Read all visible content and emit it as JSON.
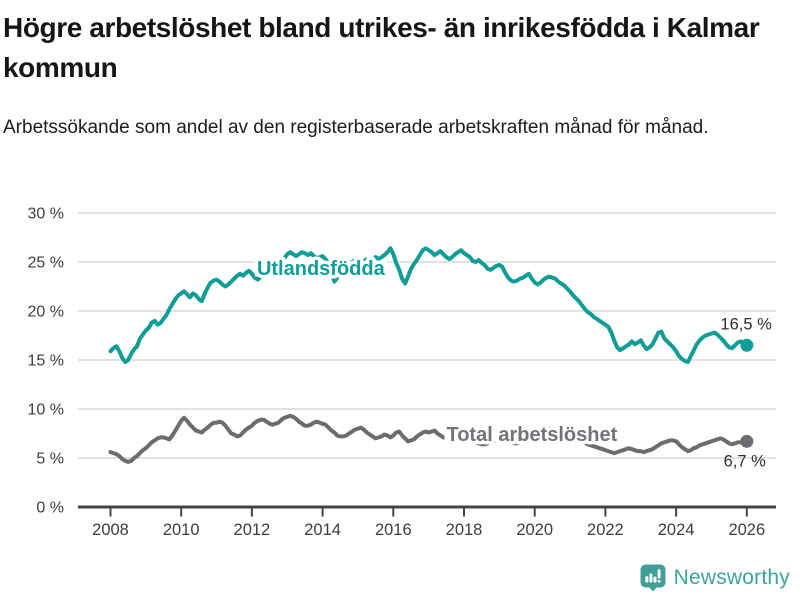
{
  "header": {
    "title": "Högre arbetslöshet bland utrikes- än inrikesfödda i Kalmar kommun",
    "subtitle": "Arbetssökande som andel av den registerbaserade arbetskraften månad för månad."
  },
  "footer": {
    "brand": "Newsworthy",
    "logo_icon": "bar-chart-speech-bubble-icon"
  },
  "colors": {
    "foreign_born_line": "#0f9e97",
    "total_line": "#6b6b70",
    "total_label": "#737379",
    "axis": "#444444",
    "grid": "#d9d9d9",
    "axis_text": "#3d3d3d",
    "annotation_text": "#2e2e2e",
    "brand_teal": "#3da49c"
  },
  "chart_data": {
    "type": "line",
    "title": "Högre arbetslöshet bland utrikes- än inrikesfödda i Kalmar kommun",
    "subtitle": "Arbetssökande som andel av den registerbaserade arbetskraften månad för månad.",
    "x_start": 2008.0,
    "points_per_year": 12,
    "xlim": [
      2007.1,
      2026.85
    ],
    "ylim": [
      0,
      30
    ],
    "grid": "horizontal",
    "legend": "inline-labels",
    "x_ticks": [
      2008,
      2010,
      2012,
      2014,
      2016,
      2018,
      2020,
      2022,
      2024,
      2026
    ],
    "y_ticks": [
      0,
      5,
      10,
      15,
      20,
      25,
      30
    ],
    "y_tick_labels": [
      "0 %",
      "5 %",
      "10 %",
      "15 %",
      "20 %",
      "25 %",
      "30 %"
    ],
    "series": [
      {
        "name": "Utlandsfödda",
        "color": "#0f9e97",
        "label_color": "#0f9e97",
        "label_x": 2013.95,
        "label_y": 24.4,
        "end_label": "16,5 %",
        "end_label_dx": 25,
        "end_label_dy": -16,
        "values": [
          15.9,
          16.2,
          16.4,
          15.9,
          15.2,
          14.8,
          15.0,
          15.6,
          16.1,
          16.4,
          17.2,
          17.6,
          18.0,
          18.3,
          18.8,
          19.0,
          18.6,
          18.8,
          19.2,
          19.6,
          20.2,
          20.7,
          21.2,
          21.6,
          21.8,
          22.0,
          21.7,
          21.4,
          21.8,
          21.6,
          21.2,
          21.0,
          21.8,
          22.4,
          22.9,
          23.1,
          23.2,
          23.0,
          22.7,
          22.5,
          22.7,
          23.0,
          23.3,
          23.6,
          23.8,
          23.6,
          23.9,
          24.1,
          23.8,
          23.4,
          23.2,
          23.5,
          23.9,
          24.2,
          24.0,
          24.3,
          24.5,
          24.8,
          25.1,
          25.4,
          25.8,
          26.0,
          25.8,
          25.6,
          25.8,
          26.0,
          25.9,
          25.7,
          25.9,
          25.6,
          25.4,
          25.5,
          25.6,
          25.3,
          24.8,
          23.9,
          23.0,
          23.4,
          24.2,
          24.7,
          25.0,
          24.8,
          25.0,
          25.2,
          25.0,
          24.8,
          25.1,
          25.3,
          25.1,
          25.3,
          25.5,
          25.3,
          25.5,
          25.7,
          26.0,
          26.4,
          25.8,
          24.9,
          24.2,
          23.3,
          22.8,
          23.5,
          24.3,
          24.8,
          25.2,
          25.7,
          26.2,
          26.4,
          26.2,
          26.0,
          25.7,
          25.9,
          26.1,
          25.8,
          25.5,
          25.3,
          25.5,
          25.8,
          26.0,
          26.2,
          25.9,
          25.7,
          25.5,
          25.1,
          25.0,
          25.2,
          24.9,
          24.7,
          24.3,
          24.2,
          24.4,
          24.6,
          24.7,
          24.5,
          23.9,
          23.4,
          23.1,
          23.0,
          23.1,
          23.3,
          23.4,
          23.6,
          23.8,
          23.3,
          22.9,
          22.7,
          22.9,
          23.2,
          23.4,
          23.5,
          23.4,
          23.3,
          23.0,
          22.8,
          22.6,
          22.3,
          22.0,
          21.6,
          21.3,
          21.0,
          20.6,
          20.2,
          19.9,
          19.7,
          19.4,
          19.2,
          19.0,
          18.8,
          18.6,
          18.4,
          17.8,
          17.0,
          16.3,
          16.0,
          16.2,
          16.4,
          16.6,
          16.9,
          16.6,
          16.8,
          17.0,
          16.5,
          16.1,
          16.3,
          16.6,
          17.2,
          17.8,
          17.9,
          17.2,
          16.9,
          16.6,
          16.3,
          15.9,
          15.4,
          15.1,
          14.9,
          14.8,
          15.4,
          16.0,
          16.6,
          17.0,
          17.3,
          17.5,
          17.6,
          17.7,
          17.8,
          17.6,
          17.3,
          17.0,
          16.6,
          16.3,
          16.2,
          16.5,
          16.8,
          16.9,
          16.7,
          16.5
        ]
      },
      {
        "name": "Total arbetslöshet",
        "color": "#6b6b70",
        "label_color": "#737379",
        "label_x": 2019.92,
        "label_y": 7.45,
        "end_label": "6,7 %",
        "end_label_dx": 19,
        "end_label_dy": 25,
        "values": [
          5.6,
          5.5,
          5.4,
          5.2,
          4.9,
          4.7,
          4.6,
          4.7,
          5.0,
          5.2,
          5.5,
          5.8,
          6.0,
          6.3,
          6.6,
          6.8,
          7.0,
          7.1,
          7.1,
          7.0,
          6.9,
          7.3,
          7.8,
          8.3,
          8.8,
          9.1,
          8.8,
          8.4,
          8.1,
          7.8,
          7.7,
          7.6,
          7.9,
          8.1,
          8.4,
          8.6,
          8.6,
          8.7,
          8.6,
          8.3,
          7.9,
          7.5,
          7.4,
          7.2,
          7.3,
          7.6,
          7.9,
          8.1,
          8.3,
          8.6,
          8.8,
          8.9,
          8.9,
          8.7,
          8.5,
          8.4,
          8.5,
          8.6,
          8.9,
          9.1,
          9.2,
          9.3,
          9.2,
          9.0,
          8.7,
          8.5,
          8.3,
          8.3,
          8.4,
          8.6,
          8.7,
          8.6,
          8.5,
          8.4,
          8.1,
          7.8,
          7.6,
          7.3,
          7.2,
          7.2,
          7.3,
          7.5,
          7.7,
          7.9,
          8.0,
          8.1,
          7.9,
          7.6,
          7.4,
          7.2,
          7.0,
          7.1,
          7.2,
          7.4,
          7.3,
          7.1,
          7.3,
          7.6,
          7.7,
          7.3,
          7.0,
          6.7,
          6.8,
          6.9,
          7.2,
          7.4,
          7.6,
          7.7,
          7.6,
          7.7,
          7.8,
          7.5,
          7.3,
          7.1,
          7.0,
          6.9,
          7.0,
          7.1,
          7.2,
          7.2,
          7.1,
          7.0,
          6.9,
          6.7,
          6.6,
          6.5,
          6.4,
          6.4,
          6.5,
          6.6,
          6.7,
          6.8,
          6.8,
          6.9,
          6.8,
          6.7,
          6.6,
          6.5,
          6.5,
          6.6,
          6.7,
          6.8,
          6.9,
          7.0,
          7.1,
          7.2,
          7.4,
          7.7,
          7.9,
          8.0,
          8.0,
          7.9,
          7.8,
          7.7,
          7.6,
          7.4,
          7.3,
          7.2,
          7.0,
          6.9,
          6.7,
          6.6,
          6.4,
          6.3,
          6.2,
          6.1,
          6.0,
          5.9,
          5.8,
          5.7,
          5.6,
          5.5,
          5.6,
          5.7,
          5.8,
          5.9,
          6.0,
          5.9,
          5.8,
          5.7,
          5.7,
          5.6,
          5.7,
          5.8,
          5.9,
          6.1,
          6.3,
          6.5,
          6.6,
          6.7,
          6.8,
          6.8,
          6.7,
          6.4,
          6.1,
          5.9,
          5.7,
          5.8,
          6.0,
          6.1,
          6.3,
          6.4,
          6.5,
          6.6,
          6.7,
          6.8,
          6.9,
          7.0,
          6.9,
          6.7,
          6.5,
          6.4,
          6.5,
          6.6,
          6.6,
          6.6,
          6.7
        ]
      }
    ]
  }
}
